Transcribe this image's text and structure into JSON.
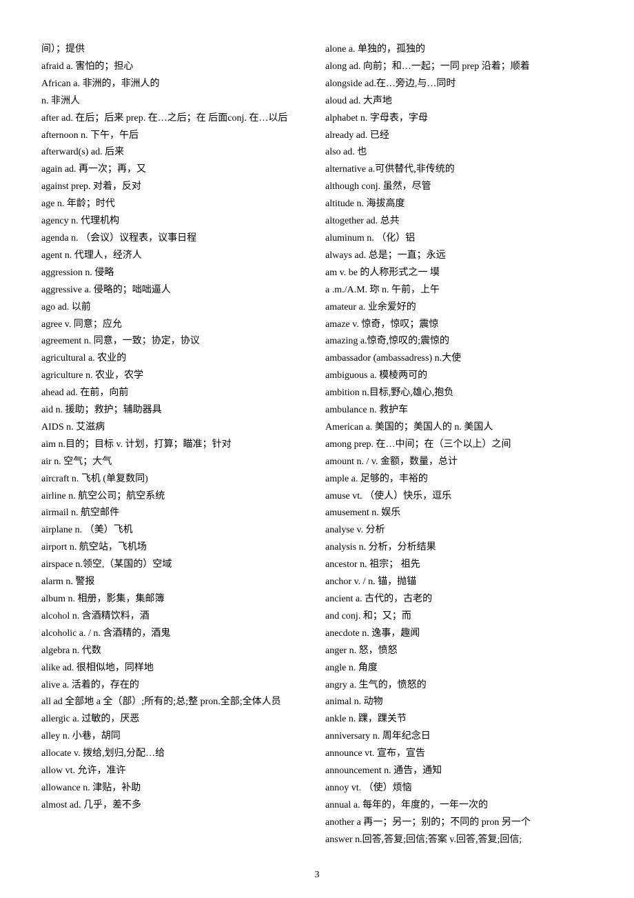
{
  "page_number": "3",
  "left_column": [
    "间）；提供",
    "afraid   a. 害怕的；担心",
    "African   a. 非洲的，非洲人的",
    "n. 非洲人",
    "after   ad. 在后；后来 prep. 在…之后；在 后面conj. 在…以后",
    "afternoon   n. 下午，午后",
    "afterward(s)   ad. 后来",
    "again   ad. 再一次；再，又",
    "against   prep. 对着，反对",
    "age   n. 年龄；时代",
    "agency   n. 代理机构",
    "agenda   n. （会议）议程表，议事日程",
    "agent   n. 代理人，经济人",
    "aggression   n. 侵略",
    "aggressive   a. 侵略的；咄咄逼人",
    "ago   ad. 以前",
    "agree   v. 同意；应允",
    "agreement   n. 同意，一致；协定，协议",
    "agricultural   a. 农业的",
    "agriculture   n. 农业，农学",
    "ahead   ad. 在前，向前",
    "aid   n. 援助；救护；辅助器具",
    "AIDS   n. 艾滋病",
    "aim   n.目的；目标 v. 计划，打算；瞄准；针对",
    "air   n. 空气；大气",
    "aircraft   n. 飞机 (单复数同)",
    "airline   n. 航空公司；航空系统",
    "airmail   n. 航空邮件",
    "airplane   n. （美）飞机",
    "airport   n. 航空站，飞机场",
    "airspace   n.领空,（某国的）空域",
    "alarm   n. 警报",
    "album   n. 相册，影集，集邮簿",
    "alcohol   n. 含酒精饮料，酒",
    "alcoholic   a. / n. 含酒精的，酒鬼",
    "algebra   n. 代数",
    "alike   ad. 很相似地，同样地",
    "alive   a. 活着的，存在的",
    "all ad 全部地 a 全（部）;所有的;总;整 pron.全部;全体人员",
    "allergic   a. 过敏的，厌恶",
    "alley   n. 小巷，胡同",
    "allocate   v. 拨给,划归,分配…给",
    "allow   vt. 允许，准许",
    "allowance   n. 津贴，补助",
    "almost   ad. 几乎，差不多"
  ],
  "right_column": [
    "alone   a. 单独的，孤独的",
    "along ad. 向前；和…一起；一同 prep 沿着；顺着",
    "alongside   ad.在…旁边,与…同时",
    "aloud   ad. 大声地",
    "alphabet   n. 字母表，字母",
    "already   ad. 已经",
    "also   ad. 也",
    "alternative   a.可供替代,非传统的",
    "although   conj. 虽然，尽管",
    "altitude   n. 海拔高度",
    "altogether   ad. 总共",
    "aluminum   n. （化）铝",
    "always   ad. 总是；一直；永远",
    "am   v.   be 的人称形式之一 塻",
    " a .m./A.M. 珎 n. 午前，上午",
    "amateur   a. 业余爱好的",
    "amaze   v. 惊奇，惊叹；震惊",
    "amazing   a.惊奇,惊叹的;震惊的",
    "ambassador (ambassadress) n.大使",
    "ambiguous   a. 模棱两可的",
    "ambition   n.目标,野心,雄心,抱负",
    "ambulance   n. 救护车",
    "American   a. 美国的；美国人的 n. 美国人",
    "among   prep. 在…中间；在（三个以上）之间",
    "amount   n. / v. 金额，数量，总计",
    "ample   a. 足够的，丰裕的",
    "amuse   vt. （使人）快乐，逗乐",
    "amusement   n. 娱乐",
    "analyse   v. 分析",
    "analysis   n. 分析，分析结果",
    "ancestor   n. 祖宗； 祖先",
    "anchor   v. / n. 锚，抛锚",
    "ancient   a. 古代的，古老的",
    "and   conj. 和；又；而",
    "anecdote   n. 逸事，趣闻",
    "anger   n. 怒，愤怒",
    "angle   n. 角度",
    "angry   a. 生气的，愤怒的",
    "animal   n. 动物",
    "ankle   n. 踝，踝关节",
    "anniversary   n. 周年纪念日",
    "announce   vt. 宣布，宣告",
    "announcement   n. 通告，通知",
    "annoy   vt. （使）烦恼",
    "annual   a. 每年的，年度的，一年一次的",
    "another a  再一；另一；别的；不同的 pron 另一个",
    "answer   n.回答,答复;回信;答案 v.回答,答复;回信;"
  ]
}
